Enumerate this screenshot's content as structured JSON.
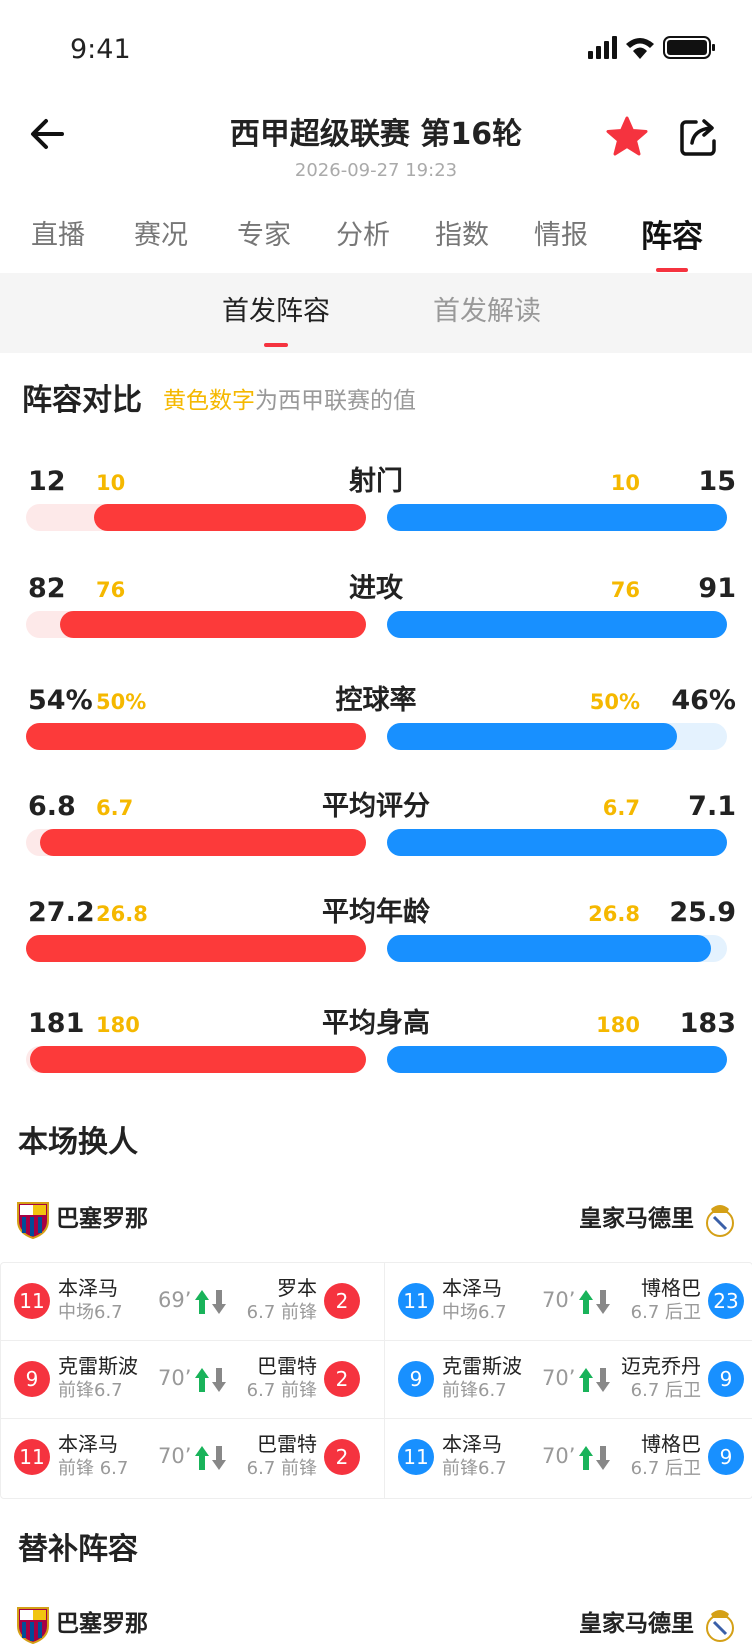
{
  "status_bar": {
    "time": "9:41"
  },
  "header": {
    "title": "西甲超级联赛 第16轮",
    "datetime": "2026-09-27  19:23"
  },
  "tabs": {
    "items": [
      "直播",
      "赛况",
      "专家",
      "分析",
      "指数",
      "情报",
      "阵容"
    ],
    "active": 6
  },
  "subtabs": {
    "items": [
      "首发阵容",
      "首发解读"
    ],
    "active": 0
  },
  "comparison": {
    "title": "阵容对比",
    "note_highlight": "黄色数字",
    "note": "为西甲联赛的值",
    "rows": [
      {
        "label": "射门",
        "home": "12",
        "home_league": "10",
        "away_league": "10",
        "away": "15"
      },
      {
        "label": "进攻",
        "home": "82",
        "home_league": "76",
        "away_league": "76",
        "away": "91"
      },
      {
        "label": "控球率",
        "home": "54%",
        "home_league": "50%",
        "away_league": "50%",
        "away": "46%"
      },
      {
        "label": "平均评分",
        "home": "6.8",
        "home_league": "6.7",
        "away_league": "6.7",
        "away": "7.1"
      },
      {
        "label": "平均年龄",
        "home": "27.2",
        "home_league": "26.8",
        "away_league": "26.8",
        "away": "25.9"
      },
      {
        "label": "平均身高",
        "home": "181",
        "home_league": "180",
        "away_league": "180",
        "away": "183"
      }
    ]
  },
  "substitutions": {
    "title": "本场换人",
    "home_team": "巴塞罗那",
    "away_team": "皇家马德里",
    "home": [
      {
        "in_number": "11",
        "in_name": "本泽马",
        "in_info": "中场6.7",
        "minute": "69’",
        "out_name": "罗本",
        "out_info": "6.7 前锋",
        "out_number": "2"
      },
      {
        "in_number": "9",
        "in_name": "克雷斯波",
        "in_info": "前锋6.7",
        "minute": "70’",
        "out_name": "巴雷特",
        "out_info": "6.7 前锋",
        "out_number": "2"
      },
      {
        "in_number": "11",
        "in_name": "本泽马",
        "in_info": "前锋 6.7",
        "minute": "70’",
        "out_name": "巴雷特",
        "out_info": "6.7 前锋",
        "out_number": "2"
      }
    ],
    "away": [
      {
        "in_number": "11",
        "in_name": "本泽马",
        "in_info": "中场6.7",
        "minute": "70’",
        "out_name": "博格巴",
        "out_info": "6.7 后卫",
        "out_number": "23"
      },
      {
        "in_number": "9",
        "in_name": "克雷斯波",
        "in_info": "前锋6.7",
        "minute": "70’",
        "out_name": "迈克乔丹",
        "out_info": "6.7 后卫",
        "out_number": "9"
      },
      {
        "in_number": "11",
        "in_name": "本泽马",
        "in_info": "前锋6.7",
        "minute": "70’",
        "out_name": "博格巴",
        "out_info": "6.7 后卫",
        "out_number": "9"
      }
    ]
  },
  "bench": {
    "title": "替补阵容",
    "home_team": "巴塞罗那",
    "away_team": "皇家马德里"
  }
}
